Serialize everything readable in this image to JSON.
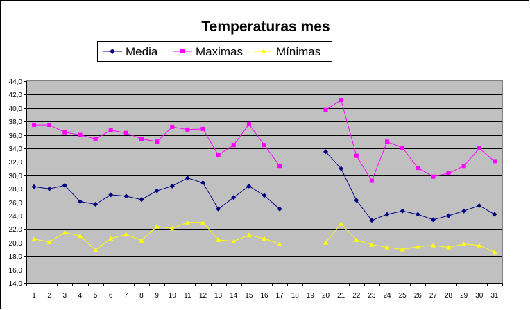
{
  "chart_data": {
    "type": "line",
    "title": "Temperaturas mes",
    "xlabel": "",
    "ylabel": "",
    "ylim": [
      14,
      44
    ],
    "ytick_step": 2,
    "y_tick_labels": [
      "14,0",
      "16,0",
      "18,0",
      "20,0",
      "22,0",
      "24,0",
      "26,0",
      "28,0",
      "30,0",
      "32,0",
      "34,0",
      "36,0",
      "38,0",
      "40,0",
      "42,0",
      "44,0"
    ],
    "categories": [
      "1",
      "2",
      "3",
      "4",
      "5",
      "6",
      "7",
      "8",
      "9",
      "10",
      "11",
      "12",
      "13",
      "14",
      "15",
      "16",
      "17",
      "18",
      "19",
      "20",
      "21",
      "22",
      "23",
      "24",
      "25",
      "26",
      "27",
      "28",
      "29",
      "30",
      "31"
    ],
    "grid": true,
    "legend": "top",
    "series": [
      {
        "name": "Media",
        "color": "#000080",
        "marker": "diamond",
        "values": [
          28.3,
          28.0,
          28.5,
          26.1,
          25.7,
          27.1,
          26.9,
          26.4,
          27.7,
          28.4,
          29.6,
          28.9,
          25.0,
          26.7,
          28.4,
          27.0,
          25.0,
          null,
          null,
          33.5,
          31.0,
          26.3,
          23.3,
          24.2,
          24.7,
          24.2,
          23.4,
          24.0,
          24.7,
          25.5,
          24.2
        ]
      },
      {
        "name": "Maximas",
        "color": "#ff00ff",
        "marker": "square",
        "values": [
          37.5,
          37.5,
          36.4,
          36.0,
          35.4,
          36.7,
          36.3,
          35.4,
          35.0,
          37.2,
          36.8,
          36.9,
          33.0,
          34.5,
          37.6,
          34.5,
          31.4,
          null,
          null,
          39.7,
          41.2,
          32.9,
          29.2,
          35.0,
          34.1,
          31.1,
          29.8,
          30.3,
          31.4,
          34.0,
          32.1
        ]
      },
      {
        "name": "Mínimas",
        "color": "#ffff00",
        "marker": "triangle",
        "values": [
          20.5,
          20.1,
          21.5,
          21.0,
          18.9,
          20.6,
          21.2,
          20.3,
          22.4,
          22.1,
          23.0,
          23.0,
          20.4,
          20.2,
          21.1,
          20.6,
          19.8,
          null,
          null,
          20.0,
          22.8,
          20.4,
          19.7,
          19.3,
          19.0,
          19.4,
          19.6,
          19.3,
          19.8,
          19.6,
          18.6
        ]
      }
    ]
  }
}
